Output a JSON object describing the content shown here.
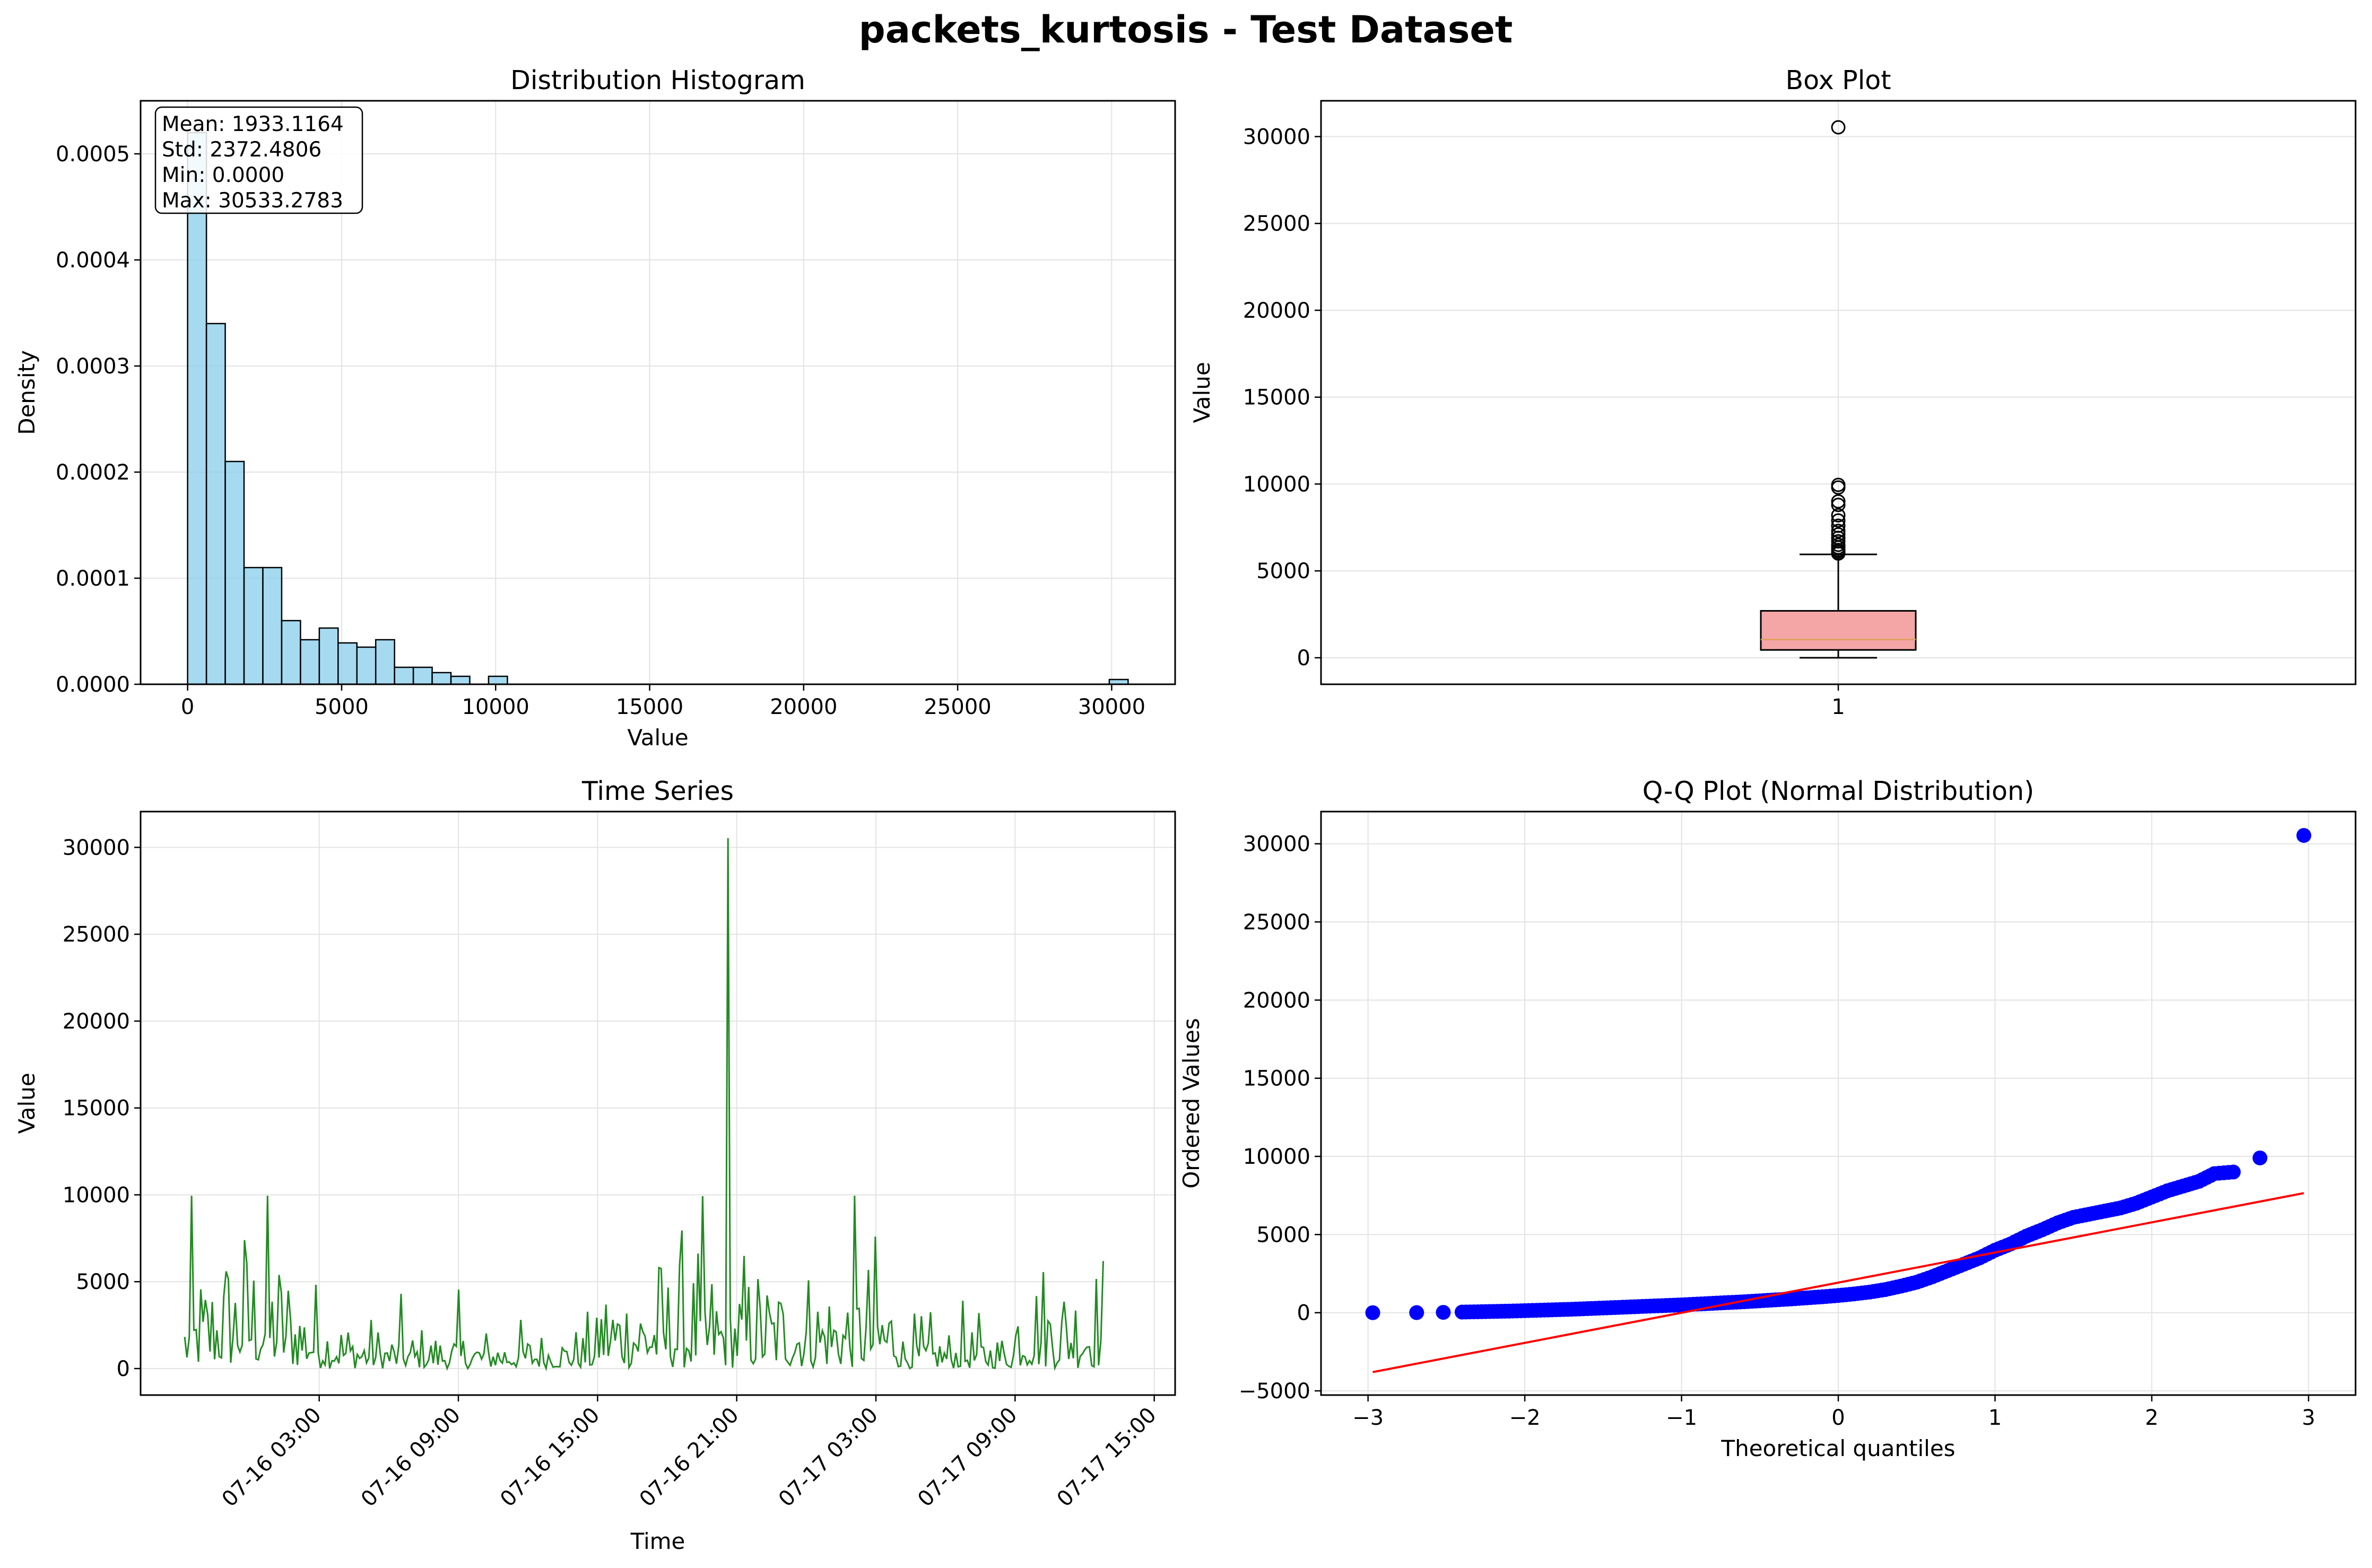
{
  "figure": {
    "title": "packets_kurtosis - Test Dataset"
  },
  "chart_data": [
    {
      "type": "bar",
      "title": "Distribution Histogram",
      "xlabel": "Value",
      "ylabel": "Density",
      "xlim": [
        -1527,
        32060
      ],
      "ylim": [
        0,
        0.00055
      ],
      "xticks": [
        "0",
        "5000",
        "10000",
        "15000",
        "20000",
        "25000",
        "30000"
      ],
      "xtick_values": [
        0,
        5000,
        10000,
        15000,
        20000,
        25000,
        30000
      ],
      "yticks": [
        "0.0000",
        "0.0001",
        "0.0002",
        "0.0003",
        "0.0004",
        "0.0005"
      ],
      "ytick_values": [
        0,
        0.0001,
        0.0002,
        0.0003,
        0.0004,
        0.0005
      ],
      "bin_start": 0,
      "bin_width": 610.67,
      "values": [
        0.00052,
        0.00034,
        0.00021,
        0.00011,
        0.00011,
        6e-05,
        4.2e-05,
        5.3e-05,
        3.9e-05,
        3.5e-05,
        4.2e-05,
        1.6e-05,
        1.6e-05,
        1.1e-05,
        7.5e-06,
        0.0,
        7.5e-06,
        0,
        0,
        0,
        0,
        0,
        0,
        0,
        0,
        0,
        0,
        0,
        0,
        0,
        0,
        0,
        0,
        0,
        0,
        0,
        0,
        0,
        0,
        0,
        0,
        0,
        0,
        0,
        0,
        0,
        0,
        0,
        0,
        4.5e-06
      ],
      "stats_box": [
        "Mean: 1933.1164",
        "Std: 2372.4806",
        "Min: 0.0000",
        "Max: 30533.2783"
      ],
      "bar_color": "#87ceeb",
      "grid": true
    },
    {
      "type": "box",
      "title": "Box Plot",
      "ylabel": "Value",
      "ylim": [
        -1527,
        32060
      ],
      "yticks": [
        "0",
        "5000",
        "10000",
        "15000",
        "20000",
        "25000",
        "30000"
      ],
      "ytick_values": [
        0,
        5000,
        10000,
        15000,
        20000,
        25000,
        30000
      ],
      "xticks": [
        "1"
      ],
      "whisker_low": 0,
      "q1": 450,
      "median": 1050,
      "q3": 2700,
      "whisker_high": 5950,
      "outliers": [
        6000,
        6100,
        6200,
        6350,
        6500,
        6700,
        6900,
        7100,
        7300,
        7600,
        7900,
        8200,
        8800,
        9000,
        9800,
        9950,
        30533
      ],
      "box_color": "#f4a6a6",
      "median_color": "#e0a060",
      "grid": true
    },
    {
      "type": "line",
      "title": "Time Series",
      "xlabel": "Time",
      "ylabel": "Value",
      "xlim_hours": [
        -4.7,
        39.9
      ],
      "ylim": [
        -1527,
        32060
      ],
      "xticks": [
        "07-16 03:00",
        "07-16 09:00",
        "07-16 15:00",
        "07-16 21:00",
        "07-17 03:00",
        "07-17 09:00",
        "07-17 15:00"
      ],
      "xtick_hours": [
        3,
        9,
        15,
        21,
        27,
        33,
        39
      ],
      "yticks": [
        "0",
        "5000",
        "10000",
        "15000",
        "20000",
        "25000",
        "30000"
      ],
      "ytick_values": [
        0,
        5000,
        10000,
        15000,
        20000,
        25000,
        30000
      ],
      "x_start_hours": -2.8,
      "x_end_hours": 36.8,
      "spike": {
        "time_hour": 20.6,
        "value": 30533
      },
      "line_color": "#228b22",
      "grid": true
    },
    {
      "type": "scatter",
      "title": "Q-Q Plot (Normal Distribution)",
      "xlabel": "Theoretical quantiles",
      "ylabel": "Ordered Values",
      "xlim": [
        -3.3,
        3.3
      ],
      "ylim": [
        -5270,
        32060
      ],
      "xticks": [
        "−3",
        "−2",
        "−1",
        "0",
        "1",
        "2",
        "3"
      ],
      "xtick_values": [
        -3,
        -2,
        -1,
        0,
        1,
        2,
        3
      ],
      "yticks": [
        "−5000",
        "0",
        "5000",
        "10000",
        "15000",
        "20000",
        "25000",
        "30000"
      ],
      "ytick_values": [
        -5000,
        0,
        5000,
        10000,
        15000,
        20000,
        25000,
        30000
      ],
      "fit_line": {
        "x": [
          -2.97,
          2.97
        ],
        "y": [
          -3800,
          7650
        ]
      },
      "points_x": [
        -2.97,
        -2.69,
        -2.52,
        -2.4,
        -2.3,
        -2.2,
        -2.1,
        -2.0,
        -1.9,
        -1.8,
        -1.7,
        -1.6,
        -1.5,
        -1.4,
        -1.3,
        -1.2,
        -1.1,
        -1.0,
        -0.9,
        -0.8,
        -0.7,
        -0.6,
        -0.5,
        -0.4,
        -0.3,
        -0.2,
        -0.1,
        0.0,
        0.1,
        0.2,
        0.3,
        0.4,
        0.5,
        0.6,
        0.7,
        0.8,
        0.9,
        1.0,
        1.1,
        1.2,
        1.3,
        1.4,
        1.5,
        1.6,
        1.7,
        1.8,
        1.9,
        2.0,
        2.1,
        2.2,
        2.3,
        2.4,
        2.52,
        2.69,
        2.97
      ],
      "points_y": [
        0,
        5,
        20,
        40,
        60,
        80,
        100,
        130,
        160,
        190,
        220,
        260,
        300,
        340,
        380,
        420,
        460,
        500,
        550,
        600,
        650,
        700,
        760,
        820,
        880,
        950,
        1020,
        1100,
        1200,
        1320,
        1480,
        1700,
        1950,
        2300,
        2700,
        3100,
        3500,
        4000,
        4400,
        4900,
        5300,
        5750,
        6100,
        6300,
        6500,
        6700,
        7000,
        7400,
        7800,
        8100,
        8400,
        8900,
        9000,
        9900,
        30533
      ],
      "point_color": "#0000ff",
      "line_color": "#ff0000",
      "grid": true
    }
  ]
}
